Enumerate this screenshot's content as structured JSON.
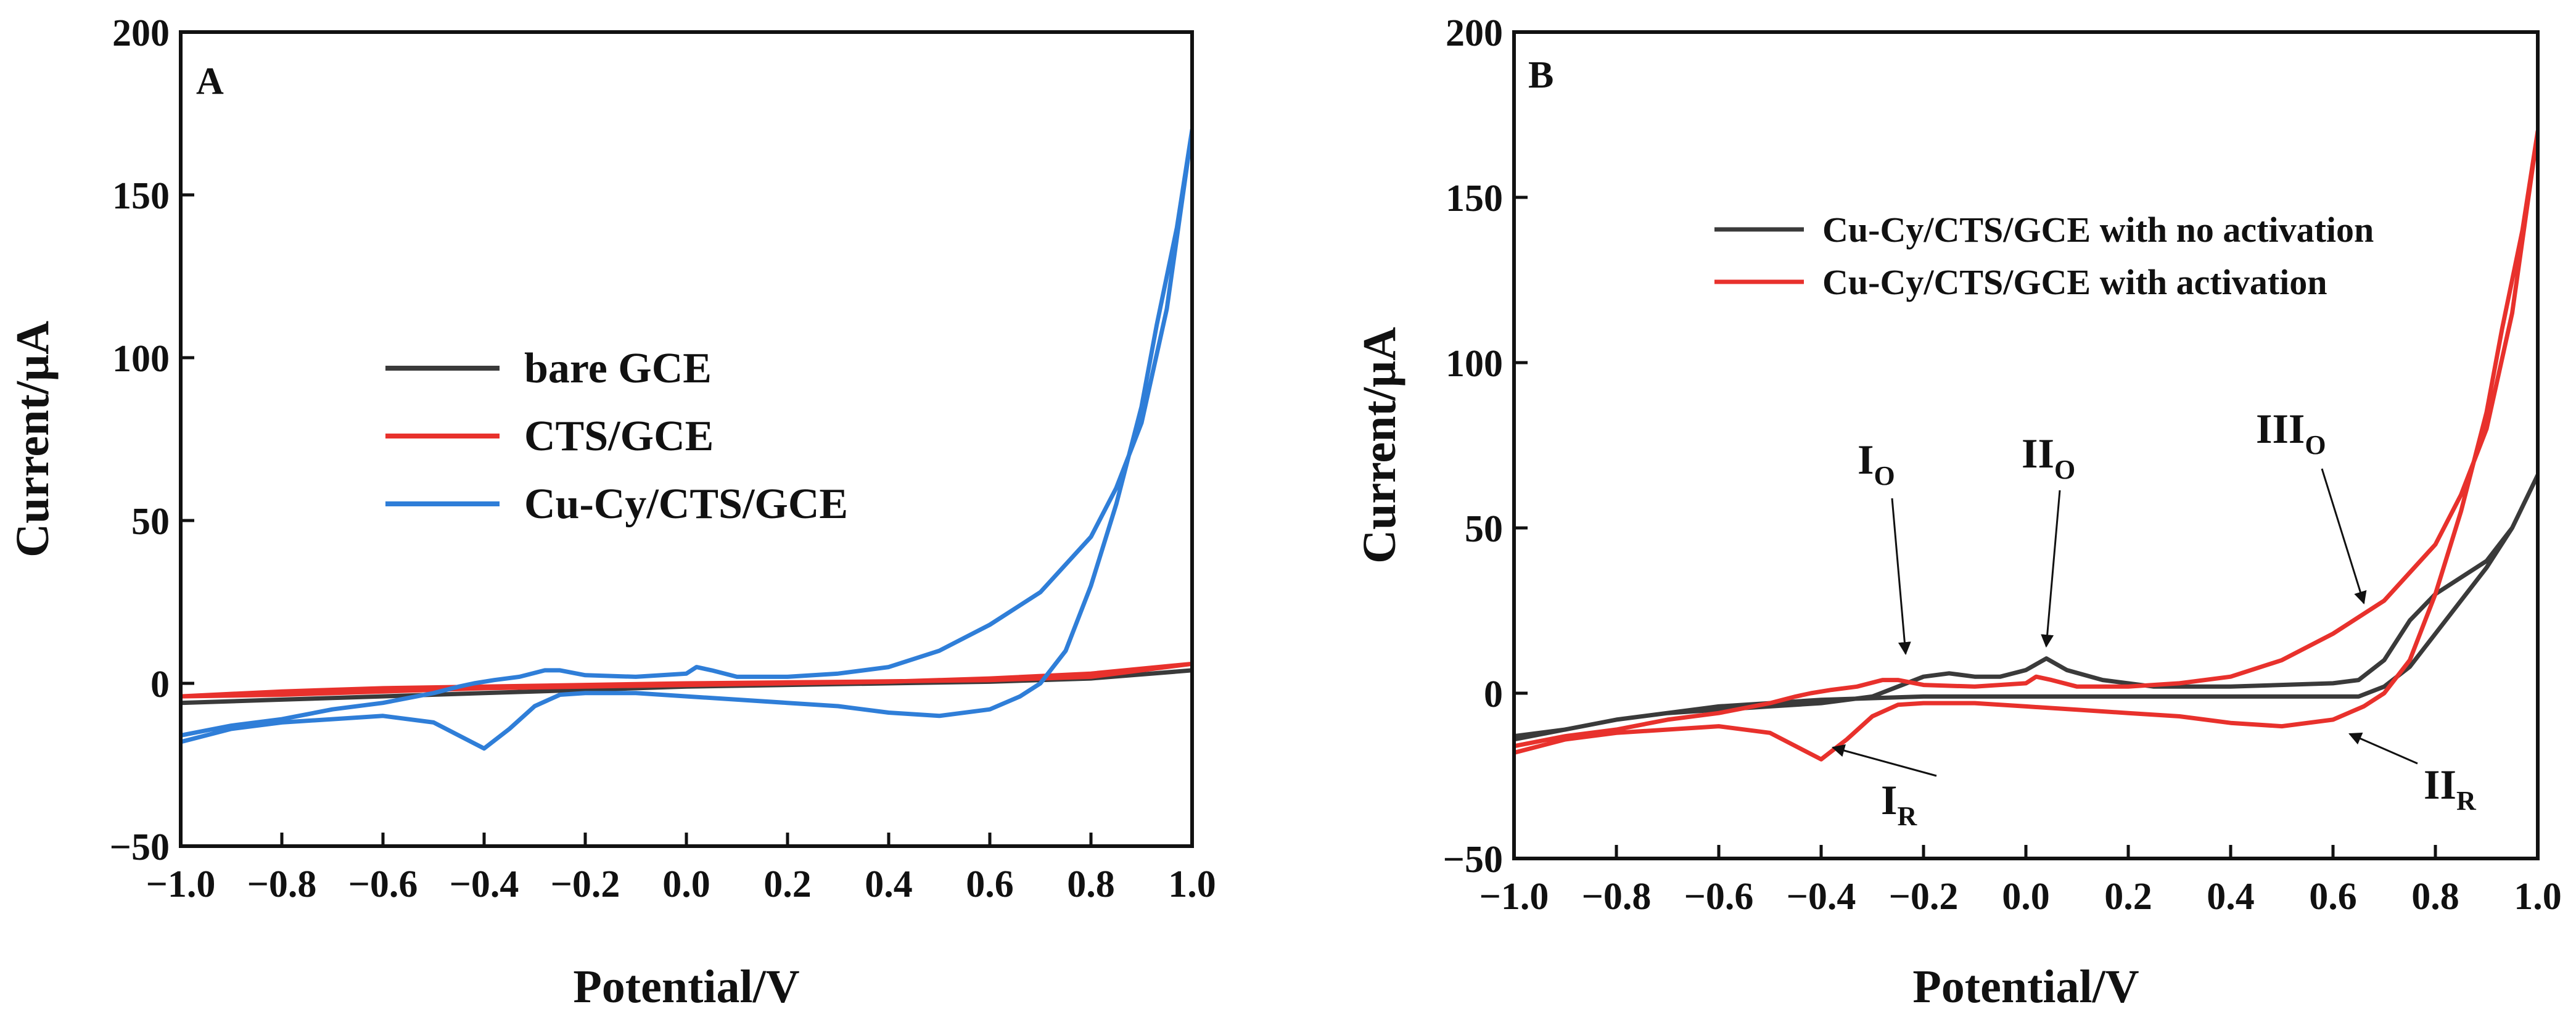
{
  "chart_data": [
    {
      "panel": "A",
      "type": "line",
      "title": "",
      "panel_label": "A",
      "xlabel": "Potential/V",
      "ylabel": "Current/μA",
      "xlim": [
        -1.0,
        1.0
      ],
      "ylim": [
        -50,
        200
      ],
      "xticks": [
        -1.0,
        -0.8,
        -0.6,
        -0.4,
        -0.2,
        0.0,
        0.2,
        0.4,
        0.6,
        0.8,
        1.0
      ],
      "xtick_labels": [
        "−1.0",
        "−0.8",
        "−0.6",
        "−0.4",
        "−0.2",
        "0.0",
        "0.2",
        "0.4",
        "0.6",
        "0.8",
        "1.0"
      ],
      "yticks": [
        -50,
        0,
        50,
        100,
        150,
        200
      ],
      "ytick_labels": [
        "−50",
        "0",
        "50",
        "100",
        "150",
        "200"
      ],
      "legend": [
        "bare GCE",
        "CTS/GCE",
        "Cu-Cy/CTS/GCE"
      ],
      "legend_position": "center-left",
      "series": [
        {
          "name": "bare GCE",
          "color": "#3a3a3a",
          "x": [
            -1.0,
            -0.8,
            -0.6,
            -0.4,
            -0.2,
            0.0,
            0.2,
            0.4,
            0.6,
            0.8,
            1.0,
            1.0,
            0.8,
            0.6,
            0.4,
            0.2,
            0.0,
            -0.2,
            -0.4,
            -0.6,
            -0.8,
            -1.0
          ],
          "y": [
            -6,
            -5,
            -4,
            -3,
            -2,
            -1,
            -0.5,
            0,
            0.5,
            1.5,
            4,
            4,
            1.5,
            0.5,
            0,
            -0.5,
            -1,
            -2,
            -3,
            -4,
            -5,
            -6
          ]
        },
        {
          "name": "CTS/GCE",
          "color": "#e8312c",
          "x": [
            -1.0,
            -0.8,
            -0.6,
            -0.4,
            -0.2,
            0.0,
            0.2,
            0.4,
            0.6,
            0.8,
            1.0,
            1.0,
            0.8,
            0.6,
            0.4,
            0.2,
            0.0,
            -0.2,
            -0.4,
            -0.6,
            -0.8,
            -1.0
          ],
          "y": [
            -4,
            -2.5,
            -1.5,
            -1,
            -0.5,
            0,
            0.3,
            0.6,
            1,
            2,
            6,
            6,
            3,
            1.5,
            0.5,
            0,
            -0.5,
            -1,
            -1.5,
            -2.5,
            -3.5,
            -4
          ]
        },
        {
          "name": "Cu-Cy/CTS/GCE",
          "color": "#2f7ed8",
          "x": [
            -1.0,
            -0.9,
            -0.8,
            -0.7,
            -0.6,
            -0.5,
            -0.45,
            -0.42,
            -0.38,
            -0.33,
            -0.28,
            -0.25,
            -0.2,
            -0.1,
            0.0,
            0.02,
            0.05,
            0.1,
            0.2,
            0.3,
            0.4,
            0.5,
            0.6,
            0.7,
            0.8,
            0.85,
            0.9,
            0.95,
            1.0,
            1.0,
            0.97,
            0.93,
            0.9,
            0.85,
            0.8,
            0.75,
            0.7,
            0.66,
            0.6,
            0.5,
            0.4,
            0.3,
            0.2,
            0.1,
            0.0,
            -0.1,
            -0.2,
            -0.25,
            -0.3,
            -0.35,
            -0.4,
            -0.5,
            -0.6,
            -0.7,
            -0.8,
            -0.9,
            -1.0
          ],
          "y": [
            -16,
            -13,
            -11,
            -8,
            -6,
            -3,
            -1,
            0,
            1,
            2,
            4,
            4,
            2.5,
            2,
            3,
            5,
            4,
            2,
            2,
            3,
            5,
            10,
            18,
            28,
            45,
            60,
            80,
            115,
            170,
            170,
            140,
            110,
            85,
            55,
            30,
            10,
            0,
            -4,
            -8,
            -10,
            -9,
            -7,
            -6,
            -5,
            -4,
            -3,
            -3,
            -3.5,
            -7,
            -14,
            -20,
            -12,
            -10,
            -11,
            -12,
            -14,
            -18
          ]
        }
      ]
    },
    {
      "panel": "B",
      "type": "line",
      "title": "",
      "panel_label": "B",
      "xlabel": "Potential/V",
      "ylabel": "Current/μA",
      "xlim": [
        -1.0,
        1.0
      ],
      "ylim": [
        -50,
        200
      ],
      "xticks": [
        -1.0,
        -0.8,
        -0.6,
        -0.4,
        -0.2,
        0.0,
        0.2,
        0.4,
        0.6,
        0.8,
        1.0
      ],
      "xtick_labels": [
        "−1.0",
        "−0.8",
        "−0.6",
        "−0.4",
        "−0.2",
        "0.0",
        "0.2",
        "0.4",
        "0.6",
        "0.8",
        "1.0"
      ],
      "yticks": [
        -50,
        0,
        50,
        100,
        150,
        200
      ],
      "ytick_labels": [
        "−50",
        "0",
        "50",
        "100",
        "150",
        "200"
      ],
      "legend": [
        "Cu-Cy/CTS/GCE with no activation",
        "Cu-Cy/CTS/GCE with activation"
      ],
      "legend_position": "top-right",
      "annotations": [
        {
          "main": "I",
          "sub": "O",
          "x": -0.2,
          "y": 6
        },
        {
          "main": "II",
          "sub": "O",
          "x": 0.04,
          "y": 11
        },
        {
          "main": "III",
          "sub": "O",
          "x": 0.6,
          "y": 23
        },
        {
          "main": "I",
          "sub": "R",
          "x": -0.41,
          "y": -20
        },
        {
          "main": "II",
          "sub": "R",
          "x": 0.64,
          "y": -13
        }
      ],
      "series": [
        {
          "name": "Cu-Cy/CTS/GCE with no activation",
          "color": "#3a3a3a",
          "x": [
            -1.0,
            -0.9,
            -0.8,
            -0.7,
            -0.6,
            -0.5,
            -0.4,
            -0.3,
            -0.25,
            -0.2,
            -0.15,
            -0.1,
            -0.05,
            0.0,
            0.04,
            0.08,
            0.15,
            0.25,
            0.4,
            0.6,
            0.65,
            0.7,
            0.75,
            0.8,
            0.9,
            0.95,
            1.0,
            1.0,
            0.95,
            0.9,
            0.85,
            0.8,
            0.75,
            0.7,
            0.65,
            0.6,
            0.4,
            0.2,
            0.0,
            -0.2,
            -0.4,
            -0.6,
            -0.8,
            -1.0
          ],
          "y": [
            -13,
            -11,
            -8,
            -6,
            -5,
            -4,
            -3,
            -1,
            2,
            5,
            6,
            5,
            5,
            7,
            10.5,
            7,
            4,
            2,
            2,
            3,
            4,
            10,
            22,
            30,
            40,
            50,
            66,
            66,
            50,
            38,
            28,
            18,
            8,
            2,
            -1,
            -1,
            -1,
            -1,
            -1,
            -1,
            -2,
            -4,
            -8,
            -14
          ]
        },
        {
          "name": "Cu-Cy/CTS/GCE with activation",
          "color": "#e8312c",
          "x": [
            -1.0,
            -0.9,
            -0.8,
            -0.7,
            -0.6,
            -0.5,
            -0.45,
            -0.42,
            -0.38,
            -0.33,
            -0.28,
            -0.25,
            -0.2,
            -0.1,
            0.0,
            0.02,
            0.05,
            0.1,
            0.2,
            0.3,
            0.4,
            0.5,
            0.6,
            0.7,
            0.8,
            0.85,
            0.9,
            0.95,
            1.0,
            1.0,
            0.97,
            0.93,
            0.9,
            0.85,
            0.8,
            0.75,
            0.7,
            0.66,
            0.6,
            0.5,
            0.4,
            0.3,
            0.2,
            0.1,
            0.0,
            -0.1,
            -0.2,
            -0.25,
            -0.3,
            -0.35,
            -0.4,
            -0.5,
            -0.6,
            -0.7,
            -0.8,
            -0.9,
            -1.0
          ],
          "y": [
            -16,
            -13,
            -11,
            -8,
            -6,
            -3,
            -1,
            0,
            1,
            2,
            4,
            4,
            2.5,
            2,
            3,
            5,
            4,
            2,
            2,
            3,
            5,
            10,
            18,
            28,
            45,
            60,
            80,
            115,
            170,
            170,
            140,
            110,
            85,
            55,
            30,
            10,
            0,
            -4,
            -8,
            -10,
            -9,
            -7,
            -6,
            -5,
            -4,
            -3,
            -3,
            -3.5,
            -7,
            -14,
            -20,
            -12,
            -10,
            -11,
            -12,
            -14,
            -18
          ]
        }
      ]
    }
  ]
}
